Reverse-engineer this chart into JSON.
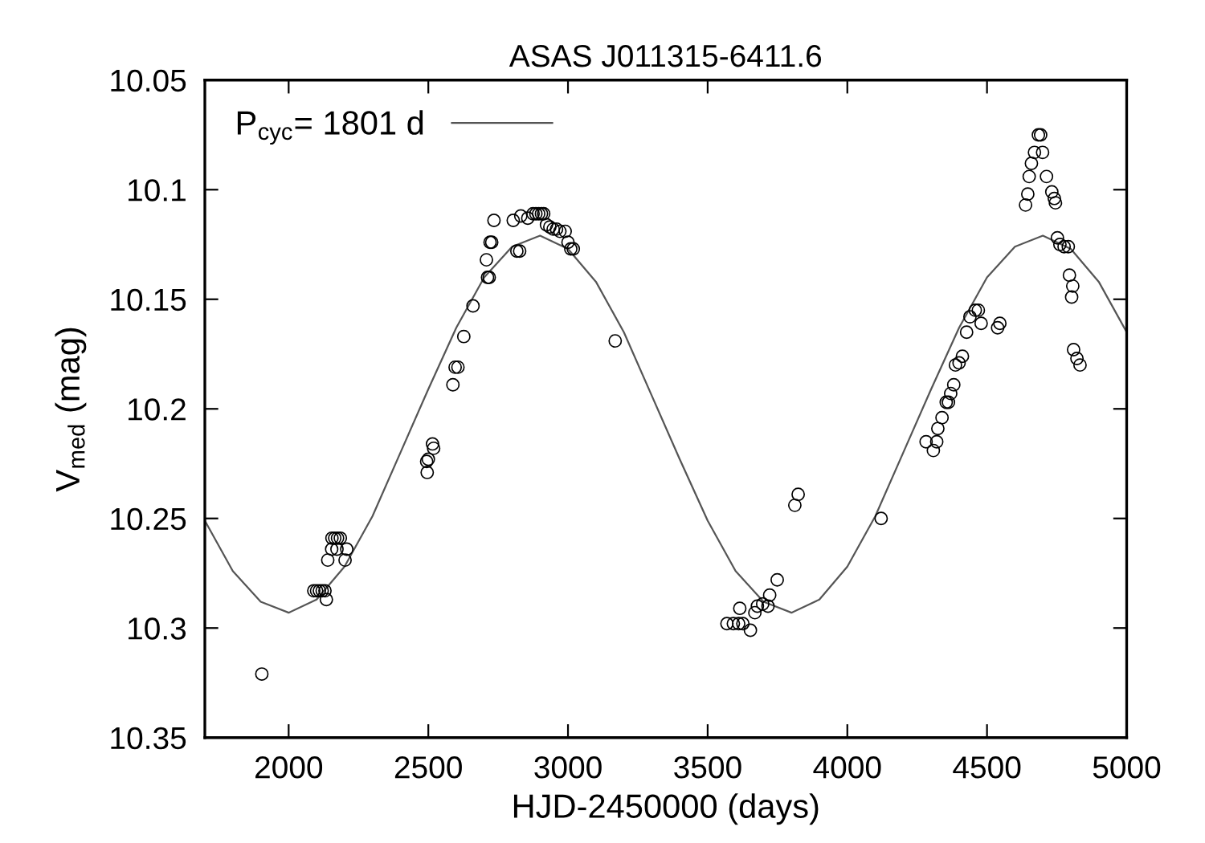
{
  "chart_data": {
    "type": "scatter",
    "title": "ASAS J011315-6411.6",
    "xlabel": "HJD-2450000 (days)",
    "ylabel": "V$_{med}$ (mag)",
    "xlim": [
      1700,
      5000
    ],
    "xticks": [
      2000,
      2500,
      3000,
      3500,
      4000,
      4500,
      5000
    ],
    "ylim": [
      10.35,
      10.05
    ],
    "yticks": [
      10.05,
      10.1,
      10.15,
      10.2,
      10.25,
      10.3,
      10.35
    ],
    "grid": false,
    "legend": "top left",
    "marker": "circle",
    "series": [
      {
        "color": "#000000",
        "x": [
          1904,
          2090,
          2100,
          2110,
          2120,
          2130,
          2135,
          2140,
          2154,
          2173,
          2202,
          2208,
          2155,
          2165,
          2175,
          2185,
          2496,
          2494,
          2500,
          2519,
          2515,
          2588,
          2596,
          2606,
          2627,
          2660,
          2712,
          2718,
          2708,
          2721,
          2727,
          2735,
          2804,
          2817,
          2827,
          2831,
          2856,
          2875,
          2885,
          2895,
          2905,
          2913,
          2923,
          2935,
          2947,
          2959,
          2971,
          2990,
          3000,
          3010,
          3019,
          3169,
          3569,
          3592,
          3611,
          3615,
          3626,
          3653,
          3669,
          3678,
          3697,
          3716,
          3722,
          3749,
          3812,
          3824,
          4121,
          4282,
          4308,
          4320,
          4324,
          4339,
          4354,
          4362,
          4370,
          4381,
          4387,
          4400,
          4412,
          4427,
          4439,
          4458,
          4469,
          4479,
          4538,
          4546,
          4638,
          4646,
          4651,
          4659,
          4670,
          4684,
          4692,
          4699,
          4713,
          4732,
          4741,
          4745,
          4752,
          4761,
          4776,
          4791,
          4795,
          4807,
          4803,
          4810,
          4822,
          4833
        ],
        "values": [
          10.321,
          10.283,
          10.283,
          10.283,
          10.283,
          10.283,
          10.287,
          10.269,
          10.264,
          10.264,
          10.269,
          10.264,
          10.259,
          10.259,
          10.259,
          10.259,
          10.229,
          10.224,
          10.223,
          10.218,
          10.216,
          10.189,
          10.181,
          10.181,
          10.167,
          10.153,
          10.14,
          10.14,
          10.132,
          10.124,
          10.124,
          10.114,
          10.114,
          10.128,
          10.128,
          10.112,
          10.113,
          10.111,
          10.111,
          10.111,
          10.111,
          10.111,
          10.116,
          10.117,
          10.118,
          10.118,
          10.119,
          10.119,
          10.124,
          10.127,
          10.127,
          10.169,
          10.298,
          10.298,
          10.298,
          10.291,
          10.298,
          10.301,
          10.293,
          10.29,
          10.289,
          10.29,
          10.285,
          10.278,
          10.244,
          10.239,
          10.25,
          10.215,
          10.219,
          10.215,
          10.209,
          10.204,
          10.197,
          10.197,
          10.193,
          10.189,
          10.18,
          10.179,
          10.176,
          10.165,
          10.158,
          10.155,
          10.155,
          10.161,
          10.163,
          10.161,
          10.107,
          10.102,
          10.094,
          10.088,
          10.083,
          10.075,
          10.075,
          10.083,
          10.094,
          10.101,
          10.104,
          10.106,
          10.122,
          10.125,
          10.126,
          10.126,
          10.139,
          10.144,
          10.149,
          10.173,
          10.177,
          10.18
        ]
      },
      {
        "type": "line",
        "name": "P$_{cyc}$= 1801 d",
        "color": "#555555",
        "marker": "none",
        "line_style": "solid",
        "x": [
          1700,
          1800,
          1900,
          2000,
          2100,
          2200,
          2300,
          2400,
          2500,
          2600,
          2700,
          2800,
          2900,
          3000,
          3100,
          3200,
          3300,
          3400,
          3500,
          3600,
          3700,
          3800,
          3900,
          4000,
          4100,
          4200,
          4300,
          4400,
          4500,
          4600,
          4700,
          4800,
          4900,
          5000
        ],
        "values": [
          10.251,
          10.274,
          10.288,
          10.293,
          10.287,
          10.272,
          10.249,
          10.22,
          10.191,
          10.163,
          10.14,
          10.126,
          10.121,
          10.127,
          10.142,
          10.165,
          10.194,
          10.223,
          10.251,
          10.274,
          10.288,
          10.293,
          10.287,
          10.272,
          10.249,
          10.22,
          10.191,
          10.163,
          10.14,
          10.126,
          10.121,
          10.127,
          10.142,
          10.165
        ]
      }
    ]
  }
}
